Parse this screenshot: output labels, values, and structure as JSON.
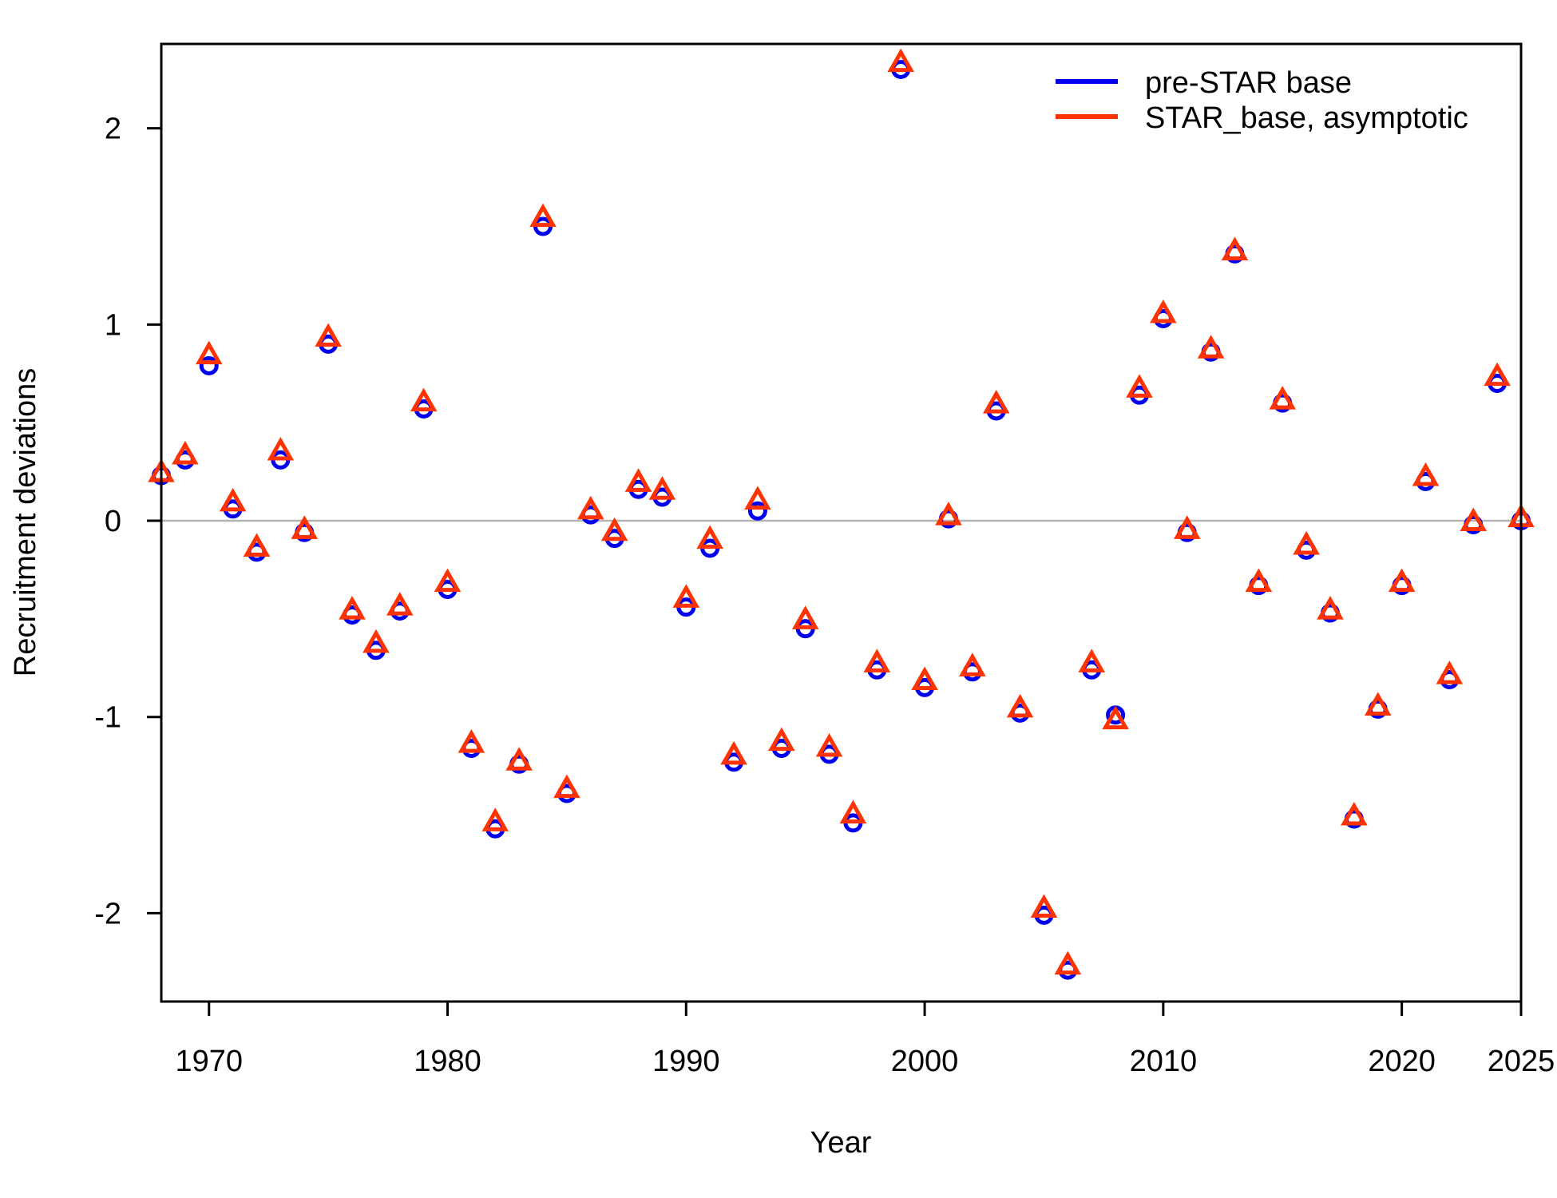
{
  "chart_data": {
    "type": "scatter",
    "xlabel": "Year",
    "ylabel": "Recruitment deviations",
    "xlim": [
      1968,
      2025
    ],
    "ylim": [
      -2.45,
      2.43
    ],
    "x_ticks": [
      1970,
      1980,
      1990,
      2000,
      2010,
      2020,
      2025
    ],
    "y_ticks": [
      -2,
      -1,
      0,
      1,
      2
    ],
    "x_tick_labels": [
      "1970",
      "1980",
      "1990",
      "2000",
      "2010",
      "2020",
      "2025"
    ],
    "y_tick_labels": [
      "-2",
      "-1",
      "0",
      "1",
      "2"
    ],
    "reference_line_y": 0,
    "legend_position": "top-right",
    "x": [
      1968,
      1969,
      1970,
      1971,
      1972,
      1973,
      1974,
      1975,
      1976,
      1977,
      1978,
      1979,
      1980,
      1981,
      1982,
      1983,
      1984,
      1985,
      1986,
      1987,
      1988,
      1989,
      1990,
      1991,
      1992,
      1993,
      1994,
      1995,
      1996,
      1997,
      1998,
      1999,
      2000,
      2001,
      2002,
      2003,
      2004,
      2005,
      2006,
      2007,
      2008,
      2009,
      2010,
      2011,
      2012,
      2013,
      2014,
      2015,
      2016,
      2017,
      2018,
      2019,
      2020,
      2021,
      2022,
      2023,
      2024,
      2025
    ],
    "series": [
      {
        "name": "pre-STAR base",
        "color": "#0000ee",
        "marker": "circle",
        "values": [
          0.23,
          0.31,
          0.79,
          0.06,
          -0.16,
          0.31,
          -0.06,
          0.9,
          -0.48,
          -0.66,
          -0.46,
          0.57,
          -0.35,
          -1.16,
          -1.57,
          -1.24,
          1.5,
          -1.39,
          0.03,
          -0.09,
          0.16,
          0.12,
          -0.44,
          -0.14,
          -1.23,
          0.05,
          -1.16,
          -0.55,
          -1.19,
          -1.54,
          -0.76,
          2.3,
          -0.85,
          0.01,
          -0.77,
          0.56,
          -0.98,
          -2.01,
          -2.29,
          -0.76,
          -0.99,
          0.64,
          1.03,
          -0.06,
          0.86,
          1.36,
          -0.33,
          0.6,
          -0.15,
          -0.47,
          -1.52,
          -0.96,
          -0.33,
          0.2,
          -0.81,
          -0.02,
          0.7,
          0.0
        ]
      },
      {
        "name": "STAR_base, asymptotic",
        "color": "#ff3300",
        "marker": "triangle",
        "values": [
          0.24,
          0.33,
          0.84,
          0.09,
          -0.14,
          0.35,
          -0.05,
          0.93,
          -0.46,
          -0.63,
          -0.44,
          0.6,
          -0.32,
          -1.14,
          -1.54,
          -1.23,
          1.54,
          -1.37,
          0.05,
          -0.06,
          0.19,
          0.15,
          -0.4,
          -0.1,
          -1.2,
          0.1,
          -1.13,
          -0.51,
          -1.16,
          -1.5,
          -0.73,
          2.33,
          -0.82,
          0.02,
          -0.75,
          0.59,
          -0.96,
          -1.98,
          -2.27,
          -0.73,
          -1.02,
          0.67,
          1.05,
          -0.05,
          0.87,
          1.37,
          -0.32,
          0.61,
          -0.13,
          -0.46,
          -1.51,
          -0.95,
          -0.32,
          0.22,
          -0.79,
          -0.01,
          0.73,
          0.01
        ]
      }
    ]
  }
}
